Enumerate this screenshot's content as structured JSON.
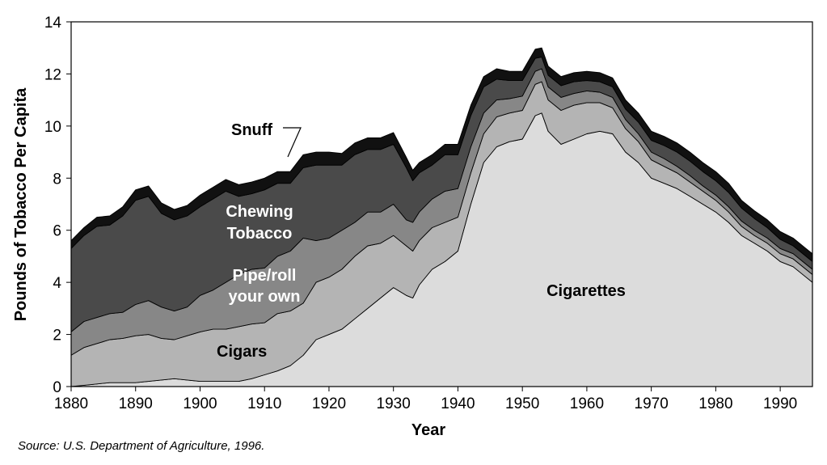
{
  "chart_data": {
    "type": "area",
    "stacked": true,
    "title": "",
    "xlabel": "Year",
    "ylabel": "Pounds of Tobacco Per Capita",
    "xlim": [
      1880,
      1995
    ],
    "ylim": [
      0,
      14
    ],
    "x_ticks": [
      1880,
      1890,
      1900,
      1910,
      1920,
      1930,
      1940,
      1950,
      1960,
      1970,
      1980,
      1990
    ],
    "y_ticks": [
      0,
      2,
      4,
      6,
      8,
      10,
      12,
      14
    ],
    "grid": false,
    "legend": "none",
    "x": [
      1880,
      1882,
      1884,
      1886,
      1888,
      1890,
      1892,
      1894,
      1896,
      1898,
      1900,
      1902,
      1904,
      1906,
      1908,
      1910,
      1912,
      1914,
      1916,
      1918,
      1920,
      1922,
      1924,
      1926,
      1928,
      1930,
      1932,
      1933,
      1934,
      1936,
      1938,
      1940,
      1942,
      1944,
      1946,
      1948,
      1950,
      1952,
      1953,
      1954,
      1956,
      1958,
      1960,
      1962,
      1964,
      1966,
      1968,
      1970,
      1972,
      1974,
      1976,
      1978,
      1980,
      1982,
      1984,
      1986,
      1988,
      1990,
      1992,
      1994,
      1995
    ],
    "series": [
      {
        "name": "Cigarettes",
        "color": "#dcdcdc",
        "values": [
          0.0,
          0.05,
          0.1,
          0.15,
          0.15,
          0.15,
          0.2,
          0.25,
          0.3,
          0.25,
          0.2,
          0.2,
          0.2,
          0.2,
          0.3,
          0.45,
          0.6,
          0.8,
          1.2,
          1.8,
          2.0,
          2.2,
          2.6,
          3.0,
          3.4,
          3.8,
          3.5,
          3.4,
          3.9,
          4.5,
          4.8,
          5.2,
          7.0,
          8.6,
          9.2,
          9.4,
          9.5,
          10.4,
          10.5,
          9.8,
          9.3,
          9.5,
          9.7,
          9.8,
          9.7,
          9.0,
          8.6,
          8.0,
          7.8,
          7.6,
          7.3,
          7.0,
          6.7,
          6.3,
          5.8,
          5.5,
          5.2,
          4.8,
          4.6,
          4.2,
          4.0
        ]
      },
      {
        "name": "Cigars",
        "color": "#b4b4b4",
        "values": [
          1.2,
          1.45,
          1.55,
          1.65,
          1.7,
          1.8,
          1.8,
          1.6,
          1.5,
          1.7,
          1.9,
          2.0,
          2.0,
          2.1,
          2.1,
          2.0,
          2.2,
          2.1,
          2.0,
          2.2,
          2.2,
          2.3,
          2.4,
          2.4,
          2.1,
          2.0,
          1.9,
          1.8,
          1.7,
          1.6,
          1.5,
          1.3,
          1.2,
          1.1,
          1.15,
          1.1,
          1.1,
          1.2,
          1.2,
          1.2,
          1.3,
          1.3,
          1.2,
          1.1,
          1.0,
          0.9,
          0.8,
          0.7,
          0.65,
          0.6,
          0.55,
          0.5,
          0.45,
          0.4,
          0.35,
          0.3,
          0.3,
          0.3,
          0.3,
          0.3,
          0.3
        ]
      },
      {
        "name": "Pipe/roll your own",
        "color": "#878787",
        "values": [
          0.9,
          1.0,
          1.0,
          1.0,
          1.0,
          1.2,
          1.3,
          1.2,
          1.1,
          1.1,
          1.4,
          1.5,
          1.8,
          2.0,
          2.1,
          2.1,
          2.2,
          2.3,
          2.5,
          1.6,
          1.5,
          1.5,
          1.3,
          1.3,
          1.2,
          1.2,
          1.0,
          1.1,
          1.1,
          1.1,
          1.2,
          1.1,
          1.0,
          0.8,
          0.65,
          0.55,
          0.55,
          0.5,
          0.5,
          0.5,
          0.5,
          0.45,
          0.45,
          0.4,
          0.4,
          0.35,
          0.3,
          0.3,
          0.3,
          0.25,
          0.25,
          0.2,
          0.2,
          0.2,
          0.2,
          0.2,
          0.2,
          0.2,
          0.2,
          0.2,
          0.2
        ]
      },
      {
        "name": "Chewing Tobacco",
        "color": "#4a4a4a",
        "values": [
          3.2,
          3.3,
          3.5,
          3.4,
          3.7,
          4.0,
          4.0,
          3.6,
          3.5,
          3.5,
          3.4,
          3.5,
          3.5,
          3.0,
          2.9,
          3.0,
          2.8,
          2.6,
          2.7,
          2.9,
          2.8,
          2.5,
          2.6,
          2.4,
          2.4,
          2.3,
          2.0,
          1.6,
          1.5,
          1.3,
          1.4,
          1.3,
          1.2,
          1.0,
          0.8,
          0.7,
          0.6,
          0.5,
          0.45,
          0.45,
          0.45,
          0.45,
          0.4,
          0.4,
          0.4,
          0.4,
          0.45,
          0.45,
          0.5,
          0.55,
          0.55,
          0.55,
          0.55,
          0.55,
          0.5,
          0.45,
          0.4,
          0.35,
          0.3,
          0.3,
          0.3
        ]
      },
      {
        "name": "Snuff",
        "color": "#111111",
        "values": [
          0.3,
          0.3,
          0.35,
          0.35,
          0.35,
          0.4,
          0.4,
          0.4,
          0.4,
          0.4,
          0.45,
          0.45,
          0.45,
          0.45,
          0.45,
          0.45,
          0.45,
          0.45,
          0.5,
          0.5,
          0.5,
          0.45,
          0.45,
          0.45,
          0.45,
          0.45,
          0.4,
          0.4,
          0.4,
          0.4,
          0.4,
          0.4,
          0.4,
          0.4,
          0.4,
          0.35,
          0.35,
          0.35,
          0.35,
          0.35,
          0.35,
          0.35,
          0.35,
          0.35,
          0.35,
          0.35,
          0.35,
          0.35,
          0.35,
          0.35,
          0.35,
          0.35,
          0.35,
          0.35,
          0.3,
          0.3,
          0.3,
          0.3,
          0.3,
          0.3,
          0.3
        ]
      }
    ],
    "labels": {
      "snuff": "Snuff",
      "chewing_1": "Chewing",
      "chewing_2": "Tobacco",
      "pipe_1": "Pipe/roll",
      "pipe_2": "your own",
      "cigars": "Cigars",
      "cigarettes": "Cigarettes"
    },
    "source": "Source:  U.S. Department of Agriculture, 1996."
  }
}
